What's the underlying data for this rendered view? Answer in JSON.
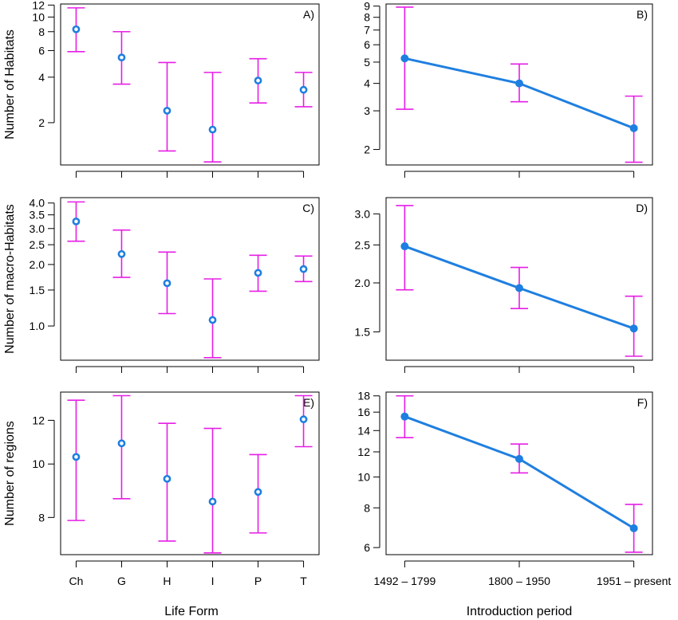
{
  "colors": {
    "error_bar": "#e61ee6",
    "point": "#1f7fe0",
    "axis": "#000000"
  },
  "x_labels": {
    "life_form": "Life Form",
    "introduction": "Introduction period"
  },
  "chart_data": [
    {
      "id": "A",
      "panel_label": "A)",
      "type": "scatter",
      "scale": "log",
      "ylabel": "Number of Habitats",
      "xlabel": "",
      "categories": [
        "Ch",
        "G",
        "H",
        "I",
        "P",
        "T"
      ],
      "ylim": [
        1.05,
        12.2
      ],
      "yticks": [
        2,
        4,
        6,
        8,
        10,
        12
      ],
      "values": [
        8.3,
        5.4,
        2.4,
        1.8,
        3.8,
        3.3
      ],
      "lower": [
        5.9,
        3.6,
        1.3,
        1.1,
        2.7,
        2.55
      ],
      "upper": [
        11.5,
        8.0,
        5.0,
        4.3,
        5.3,
        4.3
      ],
      "show_x_ticklabels": false,
      "connect": false
    },
    {
      "id": "B",
      "panel_label": "B)",
      "type": "line",
      "scale": "log",
      "ylabel": "",
      "xlabel": "",
      "categories": [
        "1492 – 1799",
        "1800 – 1950",
        "1951 – present"
      ],
      "ylim": [
        1.7,
        9.2
      ],
      "yticks": [
        2,
        3,
        4,
        5,
        6,
        7,
        8,
        9
      ],
      "values": [
        5.2,
        4.0,
        2.5
      ],
      "lower": [
        3.05,
        3.3,
        1.75
      ],
      "upper": [
        8.9,
        4.9,
        3.5
      ],
      "show_x_ticklabels": false,
      "connect": true
    },
    {
      "id": "C",
      "panel_label": "C)",
      "type": "scatter",
      "scale": "log",
      "ylabel": "Number of macro-Habitats",
      "xlabel": "",
      "categories": [
        "Ch",
        "G",
        "H",
        "I",
        "P",
        "T"
      ],
      "ylim": [
        0.68,
        4.25
      ],
      "yticks": [
        1.0,
        1.5,
        2.0,
        2.5,
        3.0,
        3.5,
        4.0
      ],
      "tick_labels": [
        "1.0",
        "1.5",
        "2.0",
        "2.5",
        "3.0",
        "3.5",
        "4.0"
      ],
      "values": [
        3.25,
        2.25,
        1.62,
        1.07,
        1.82,
        1.9
      ],
      "lower": [
        2.6,
        1.73,
        1.15,
        0.7,
        1.48,
        1.65
      ],
      "upper": [
        4.05,
        2.95,
        2.3,
        1.7,
        2.22,
        2.2
      ],
      "show_x_ticklabels": false,
      "connect": false
    },
    {
      "id": "D",
      "panel_label": "D)",
      "type": "line",
      "scale": "log",
      "ylabel": "",
      "xlabel": "",
      "categories": [
        "1492 – 1799",
        "1800 – 1950",
        "1951 – present"
      ],
      "ylim": [
        1.27,
        3.3
      ],
      "yticks": [
        1.5,
        2.0,
        2.5,
        3.0
      ],
      "tick_labels": [
        "1.5",
        "2.0",
        "2.5",
        "3.0"
      ],
      "values": [
        2.48,
        1.94,
        1.53
      ],
      "lower": [
        1.92,
        1.72,
        1.3
      ],
      "upper": [
        3.15,
        2.19,
        1.85
      ],
      "show_x_ticklabels": false,
      "connect": true
    },
    {
      "id": "E",
      "panel_label": "E)",
      "type": "scatter",
      "scale": "log",
      "ylabel": "Number of regions",
      "xlabel": "Life Form",
      "categories": [
        "Ch",
        "G",
        "H",
        "I",
        "P",
        "T"
      ],
      "ylim": [
        6.85,
        13.5
      ],
      "yticks": [
        8,
        10,
        12
      ],
      "values": [
        10.3,
        10.9,
        9.4,
        8.55,
        8.9,
        12.05
      ],
      "lower": [
        7.9,
        8.65,
        7.25,
        6.9,
        7.5,
        10.75
      ],
      "upper": [
        13.05,
        13.3,
        11.85,
        11.6,
        10.4,
        13.3
      ],
      "show_x_ticklabels": true,
      "connect": false
    },
    {
      "id": "F",
      "panel_label": "F)",
      "type": "line",
      "scale": "log",
      "ylabel": "",
      "xlabel": "Introduction period",
      "categories": [
        "1492 – 1799",
        "1800 – 1950",
        "1951 – present"
      ],
      "ylim": [
        5.7,
        18.5
      ],
      "yticks": [
        6,
        8,
        10,
        12,
        14,
        16,
        18
      ],
      "values": [
        15.5,
        11.4,
        6.9
      ],
      "lower": [
        13.3,
        10.3,
        5.8
      ],
      "upper": [
        18.0,
        12.7,
        8.2
      ],
      "show_x_ticklabels": true,
      "connect": true
    }
  ]
}
